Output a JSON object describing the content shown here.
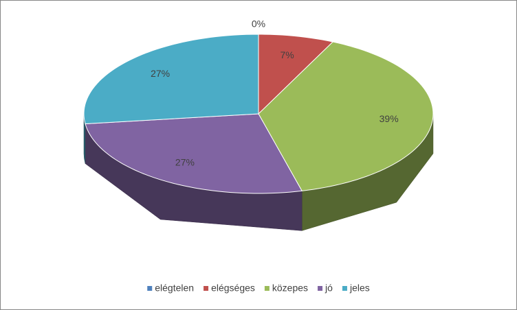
{
  "chart_data": {
    "type": "pie3d",
    "categories": [
      "elégtelen",
      "elégséges",
      "közepes",
      "jó",
      "jeles"
    ],
    "values": [
      0,
      7,
      39,
      27,
      27
    ],
    "value_labels": [
      "0%",
      "7%",
      "39%",
      "27%",
      "27%"
    ],
    "colors": [
      "#4f81bd",
      "#c0504d",
      "#9bbb59",
      "#8064a2",
      "#4bacc6"
    ],
    "legend": "bottom"
  }
}
